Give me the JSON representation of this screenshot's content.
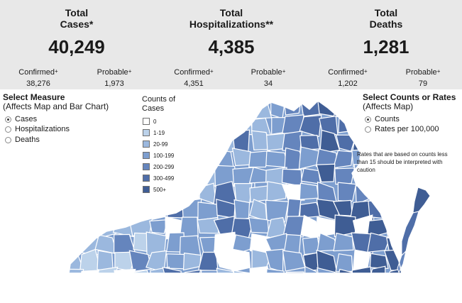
{
  "stats": {
    "cases": {
      "title_line1": "Total",
      "title_line2": "Cases*",
      "value": "40,249",
      "confirmed_label": "Confirmed",
      "confirmed_value": "38,276",
      "probable_label": "Probable",
      "probable_value": "1,973"
    },
    "hospitalizations": {
      "title_line1": "Total",
      "title_line2": "Hospitalizations**",
      "value": "4,385",
      "confirmed_label": "Confirmed",
      "confirmed_value": "4,351",
      "probable_label": "Probable",
      "probable_value": "34"
    },
    "deaths": {
      "title_line1": "Total",
      "title_line2": "Deaths",
      "value": "1,281",
      "confirmed_label": "Confirmed",
      "confirmed_value": "1,202",
      "probable_label": "Probable",
      "probable_value": "79"
    },
    "superscript": "+"
  },
  "measure": {
    "title": "Select Measure",
    "subtitle": "(Affects Map and Bar Chart)",
    "options": [
      {
        "label": "Cases",
        "selected": true
      },
      {
        "label": "Hospitalizations",
        "selected": false
      },
      {
        "label": "Deaths",
        "selected": false
      }
    ]
  },
  "legend": {
    "title_line1": "Counts of",
    "title_line2": "Cases",
    "items": [
      {
        "label": "0",
        "color": "#ffffff"
      },
      {
        "label": "1-19",
        "color": "#bcd2ea"
      },
      {
        "label": "20-99",
        "color": "#9bb8de"
      },
      {
        "label": "100-199",
        "color": "#7d9ecf"
      },
      {
        "label": "200-299",
        "color": "#6585bd"
      },
      {
        "label": "300-499",
        "color": "#4f6ea8"
      },
      {
        "label": "500+",
        "color": "#3f5d94"
      }
    ]
  },
  "counts_rates": {
    "title": "Select Counts or Rates",
    "subtitle": "(Affects Map)",
    "options": [
      {
        "label": "Counts",
        "selected": true
      },
      {
        "label": "Rates per 100,000",
        "selected": false
      }
    ],
    "note": "Rates that are based on counts less than 15 should be interpreted with caution"
  },
  "map": {
    "border_color": "#ffffff",
    "shade_classes": [
      "#ffffff",
      "#bcd2ea",
      "#9bb8de",
      "#7d9ecf",
      "#6585bd",
      "#4f6ea8",
      "#3f5d94"
    ]
  }
}
